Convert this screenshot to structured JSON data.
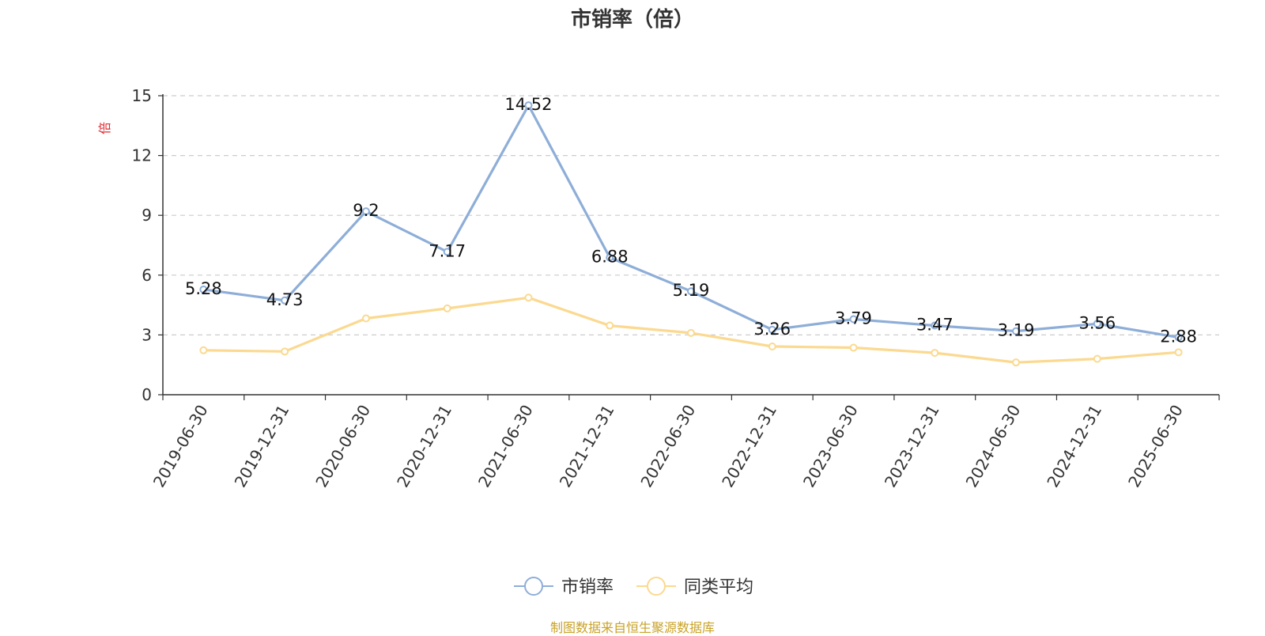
{
  "title": "市销率（倍）",
  "source_note": "制图数据来自恒生聚源数据库",
  "colors": {
    "series_main": "#8eaed8",
    "series_avg": "#fbd990",
    "grid": "#cccccc",
    "axis": "#333333",
    "unit": "#e0282f"
  },
  "chart_data": {
    "type": "line",
    "title": "市销率（倍）",
    "ylabel": "倍",
    "xlabel": "",
    "ylim": [
      0,
      15
    ],
    "yticks": [
      0,
      3,
      6,
      9,
      12,
      15
    ],
    "grid": true,
    "legend_position": "bottom-center",
    "categories": [
      "2019-06-30",
      "2019-12-31",
      "2020-06-30",
      "2020-12-31",
      "2021-06-30",
      "2021-12-31",
      "2022-06-30",
      "2022-12-31",
      "2023-06-30",
      "2023-12-31",
      "2024-06-30",
      "2024-12-31",
      "2025-06-30"
    ],
    "series": [
      {
        "name": "市销率",
        "values": [
          5.28,
          4.73,
          9.2,
          7.17,
          14.52,
          6.88,
          5.19,
          3.26,
          3.79,
          3.47,
          3.19,
          3.56,
          2.88
        ],
        "labels": [
          "5.28",
          "4.73",
          "9.2",
          "7.17",
          "14.52",
          "6.88",
          "5.19",
          "3.26",
          "3.79",
          "3.47",
          "3.19",
          "3.56",
          "2.88"
        ]
      },
      {
        "name": "同类平均",
        "values": [
          2.23,
          2.17,
          3.83,
          4.33,
          4.87,
          3.47,
          3.1,
          2.42,
          2.36,
          2.1,
          1.62,
          1.8,
          2.13
        ]
      }
    ]
  }
}
